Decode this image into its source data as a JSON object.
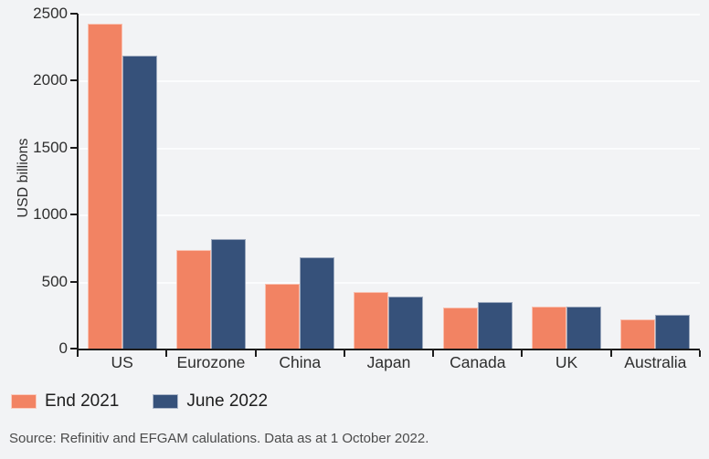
{
  "chart_data": {
    "type": "bar",
    "title": "",
    "categories": [
      "US",
      "Eurozone",
      "China",
      "Japan",
      "Canada",
      "UK",
      "Australia"
    ],
    "series": [
      {
        "name": "End 2021",
        "color": "#F28363",
        "values": [
          2425,
          735,
          485,
          425,
          310,
          315,
          220
        ]
      },
      {
        "name": "June 2022",
        "color": "#36517A",
        "values": [
          2185,
          820,
          680,
          385,
          350,
          315,
          250
        ]
      }
    ],
    "xlabel": "",
    "ylabel": "USD billions",
    "ylim": [
      0,
      2500
    ],
    "yticks": [
      0,
      500,
      1000,
      1500,
      2000,
      2500
    ],
    "grid": true,
    "gridline_color": "#FBFCFD",
    "legend_position": "bottom-left"
  },
  "colors": {
    "background": "#F2F3F5",
    "axis": "#1C1C1C",
    "tick_text": "#2E2E2E",
    "legend_text": "#1E1E1E",
    "source_text": "#4B4B4B",
    "end_2021": "#F28363",
    "june_2022": "#36517A"
  },
  "source_note": "Source: Refinitiv and EFGAM calulations. Data as at 1 October 2022."
}
